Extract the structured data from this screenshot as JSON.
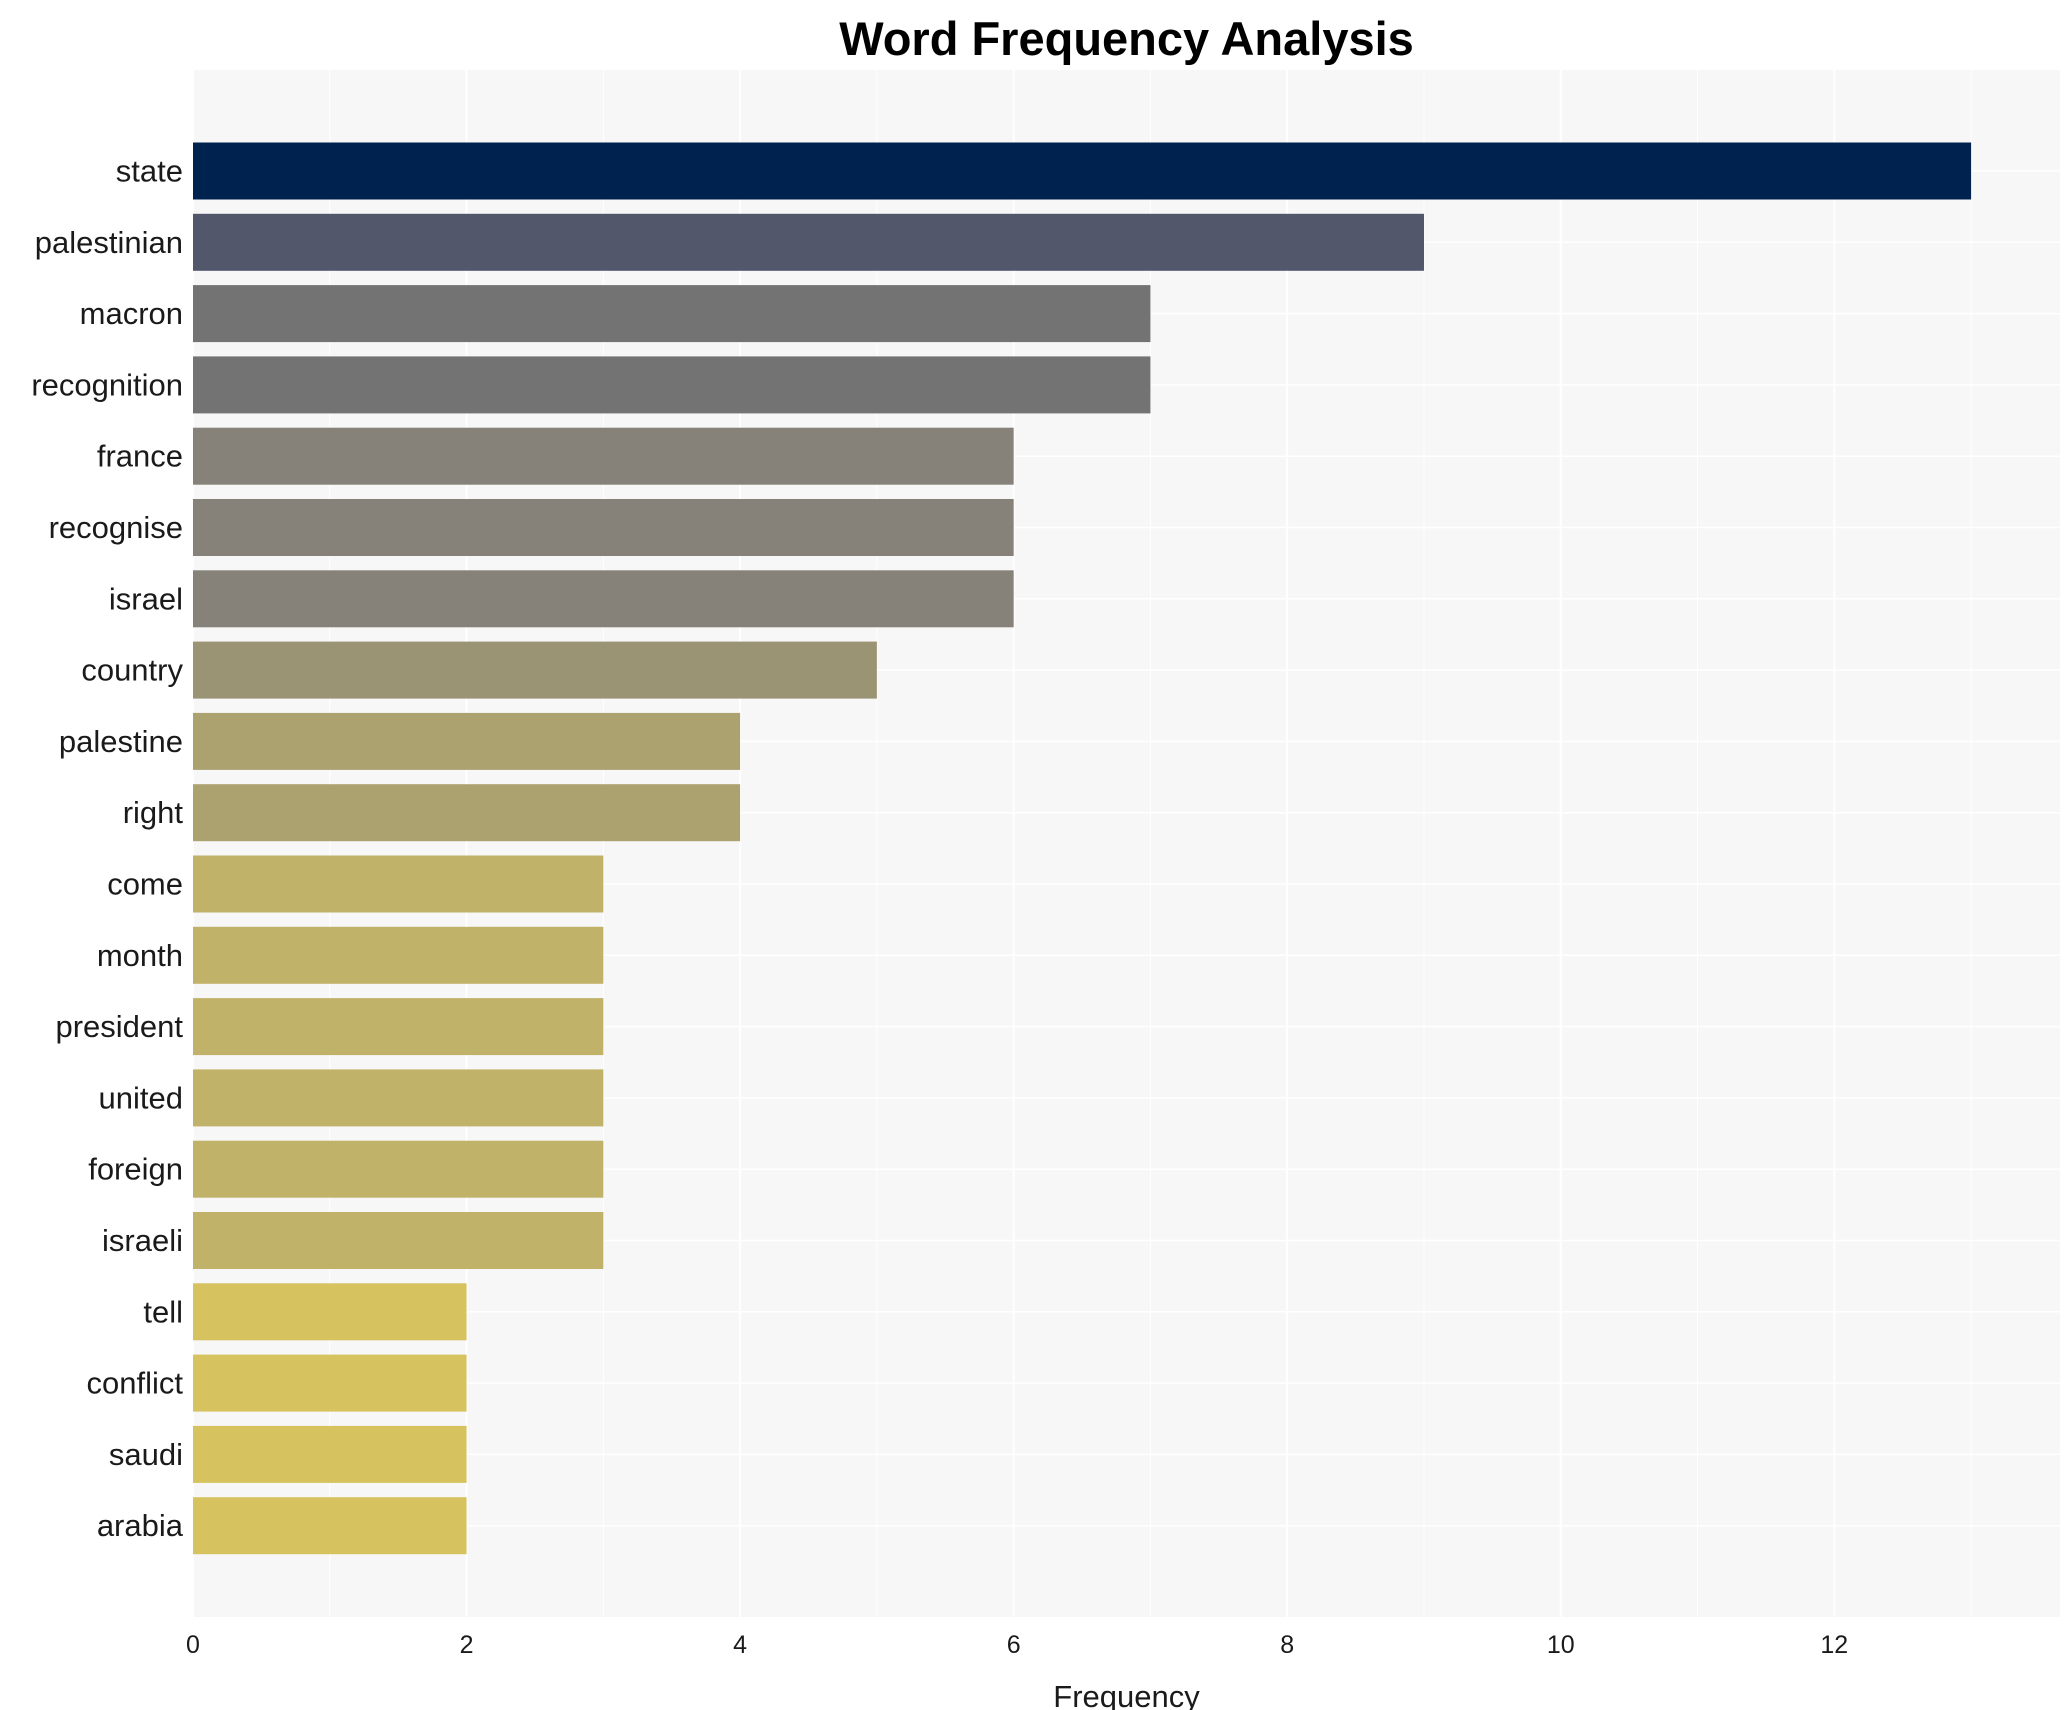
{
  "chart_data": {
    "type": "bar",
    "orientation": "horizontal",
    "title": "Word Frequency Analysis",
    "xlabel": "Frequency",
    "ylabel": "",
    "categories": [
      "state",
      "palestinian",
      "macron",
      "recognition",
      "france",
      "recognise",
      "israel",
      "country",
      "palestine",
      "right",
      "come",
      "month",
      "president",
      "united",
      "foreign",
      "israeli",
      "tell",
      "conflict",
      "saudi",
      "arabia"
    ],
    "values": [
      13,
      9,
      7,
      7,
      6,
      6,
      6,
      5,
      4,
      4,
      3,
      3,
      3,
      3,
      3,
      3,
      2,
      2,
      2,
      2
    ],
    "xlim": [
      0,
      13.65
    ],
    "x_ticks": [
      0,
      2,
      4,
      6,
      8,
      10,
      12
    ],
    "x_tick_labels": [
      "0",
      "2",
      "4",
      "6",
      "8",
      "10",
      "12"
    ],
    "grid": true,
    "legend": false,
    "colors": {
      "13": "#00224e",
      "9": "#52576c",
      "7": "#737373",
      "6": "#868279",
      "5": "#9a9374",
      "4": "#aba270",
      "3": "#c1b26a",
      "2": "#d6c25e"
    },
    "background": "#f7f7f7",
    "grid_color": "#ffffff"
  }
}
